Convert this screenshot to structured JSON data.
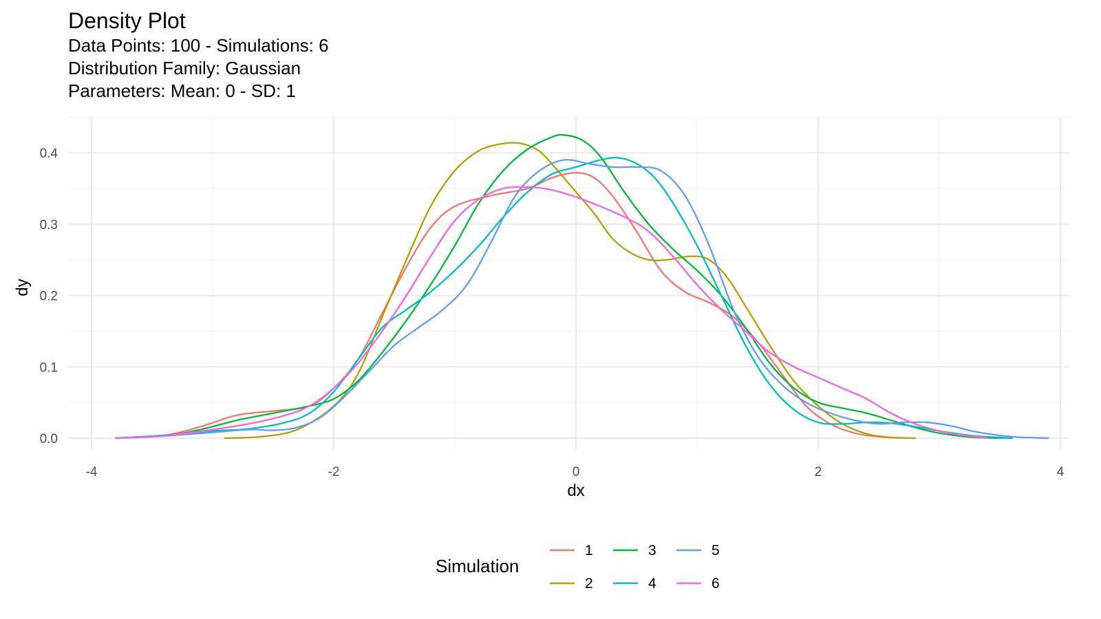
{
  "chart_data": {
    "type": "line",
    "title": "Density Plot",
    "subtitle": [
      "Data Points: 100 - Simulations: 6",
      "Distribution Family: Gaussian",
      "Parameters: Mean: 0 - SD: 1"
    ],
    "xlabel": "dx",
    "ylabel": "dy",
    "xlim": [
      -4,
      4
    ],
    "ylim": [
      0,
      0.43
    ],
    "x_ticks": [
      -4,
      -2,
      0,
      2,
      4
    ],
    "x_tick_labels": [
      "-4",
      "-2",
      "0",
      "2",
      "4"
    ],
    "y_ticks": [
      0,
      0.1,
      0.2,
      0.3,
      0.4
    ],
    "y_tick_labels": [
      "0.0",
      "0.1",
      "0.2",
      "0.3",
      "0.4"
    ],
    "grid": true,
    "legend": {
      "title": "Simulation",
      "position": "bottom"
    },
    "series": [
      {
        "name": "1",
        "color": "#F8766D",
        "points": [
          [
            -3.8,
            0.0
          ],
          [
            -3.4,
            0.004
          ],
          [
            -3.1,
            0.016
          ],
          [
            -2.8,
            0.032
          ],
          [
            -2.5,
            0.038
          ],
          [
            -2.2,
            0.045
          ],
          [
            -2.0,
            0.07
          ],
          [
            -1.8,
            0.11
          ],
          [
            -1.6,
            0.175
          ],
          [
            -1.4,
            0.24
          ],
          [
            -1.2,
            0.295
          ],
          [
            -1.0,
            0.325
          ],
          [
            -0.7,
            0.34
          ],
          [
            -0.4,
            0.35
          ],
          [
            -0.2,
            0.365
          ],
          [
            0.0,
            0.372
          ],
          [
            0.15,
            0.365
          ],
          [
            0.3,
            0.34
          ],
          [
            0.5,
            0.29
          ],
          [
            0.7,
            0.235
          ],
          [
            0.9,
            0.205
          ],
          [
            1.1,
            0.19
          ],
          [
            1.3,
            0.17
          ],
          [
            1.5,
            0.135
          ],
          [
            1.7,
            0.09
          ],
          [
            1.9,
            0.045
          ],
          [
            2.1,
            0.02
          ],
          [
            2.3,
            0.007
          ],
          [
            2.5,
            0.002
          ],
          [
            2.7,
            0.0
          ]
        ]
      },
      {
        "name": "2",
        "color": "#B79F00",
        "points": [
          [
            -2.9,
            0.0
          ],
          [
            -2.6,
            0.002
          ],
          [
            -2.3,
            0.012
          ],
          [
            -2.0,
            0.045
          ],
          [
            -1.8,
            0.09
          ],
          [
            -1.6,
            0.17
          ],
          [
            -1.4,
            0.25
          ],
          [
            -1.2,
            0.325
          ],
          [
            -1.0,
            0.375
          ],
          [
            -0.8,
            0.403
          ],
          [
            -0.6,
            0.413
          ],
          [
            -0.45,
            0.413
          ],
          [
            -0.3,
            0.402
          ],
          [
            -0.15,
            0.375
          ],
          [
            0.0,
            0.345
          ],
          [
            0.15,
            0.315
          ],
          [
            0.3,
            0.28
          ],
          [
            0.45,
            0.26
          ],
          [
            0.6,
            0.25
          ],
          [
            0.75,
            0.25
          ],
          [
            0.95,
            0.255
          ],
          [
            1.1,
            0.25
          ],
          [
            1.25,
            0.225
          ],
          [
            1.4,
            0.185
          ],
          [
            1.6,
            0.13
          ],
          [
            1.8,
            0.08
          ],
          [
            2.0,
            0.045
          ],
          [
            2.2,
            0.02
          ],
          [
            2.4,
            0.006
          ],
          [
            2.6,
            0.001
          ],
          [
            2.8,
            0.0
          ]
        ]
      },
      {
        "name": "3",
        "color": "#00BA38",
        "points": [
          [
            -3.8,
            0.0
          ],
          [
            -3.4,
            0.003
          ],
          [
            -3.1,
            0.012
          ],
          [
            -2.8,
            0.025
          ],
          [
            -2.5,
            0.035
          ],
          [
            -2.2,
            0.045
          ],
          [
            -2.0,
            0.055
          ],
          [
            -1.8,
            0.08
          ],
          [
            -1.6,
            0.12
          ],
          [
            -1.4,
            0.165
          ],
          [
            -1.2,
            0.215
          ],
          [
            -1.0,
            0.27
          ],
          [
            -0.8,
            0.33
          ],
          [
            -0.6,
            0.375
          ],
          [
            -0.4,
            0.405
          ],
          [
            -0.2,
            0.422
          ],
          [
            -0.1,
            0.425
          ],
          [
            0.05,
            0.418
          ],
          [
            0.2,
            0.395
          ],
          [
            0.4,
            0.345
          ],
          [
            0.6,
            0.3
          ],
          [
            0.8,
            0.265
          ],
          [
            1.0,
            0.235
          ],
          [
            1.2,
            0.2
          ],
          [
            1.4,
            0.155
          ],
          [
            1.6,
            0.105
          ],
          [
            1.8,
            0.07
          ],
          [
            2.0,
            0.05
          ],
          [
            2.2,
            0.042
          ],
          [
            2.4,
            0.035
          ],
          [
            2.6,
            0.025
          ],
          [
            2.8,
            0.015
          ],
          [
            3.0,
            0.007
          ],
          [
            3.3,
            0.001
          ],
          [
            3.6,
            0.0
          ]
        ]
      },
      {
        "name": "4",
        "color": "#00BFC4",
        "points": [
          [
            -3.8,
            0.0
          ],
          [
            -3.4,
            0.004
          ],
          [
            -3.0,
            0.01
          ],
          [
            -2.7,
            0.013
          ],
          [
            -2.4,
            0.022
          ],
          [
            -2.2,
            0.035
          ],
          [
            -2.0,
            0.065
          ],
          [
            -1.8,
            0.11
          ],
          [
            -1.6,
            0.155
          ],
          [
            -1.4,
            0.18
          ],
          [
            -1.2,
            0.205
          ],
          [
            -1.0,
            0.235
          ],
          [
            -0.8,
            0.27
          ],
          [
            -0.6,
            0.31
          ],
          [
            -0.4,
            0.345
          ],
          [
            -0.2,
            0.37
          ],
          [
            0.0,
            0.38
          ],
          [
            0.2,
            0.39
          ],
          [
            0.35,
            0.393
          ],
          [
            0.5,
            0.385
          ],
          [
            0.65,
            0.365
          ],
          [
            0.8,
            0.33
          ],
          [
            1.0,
            0.27
          ],
          [
            1.2,
            0.2
          ],
          [
            1.4,
            0.13
          ],
          [
            1.6,
            0.075
          ],
          [
            1.8,
            0.04
          ],
          [
            2.0,
            0.022
          ],
          [
            2.2,
            0.02
          ],
          [
            2.4,
            0.022
          ],
          [
            2.6,
            0.021
          ],
          [
            2.8,
            0.016
          ],
          [
            3.0,
            0.01
          ],
          [
            3.3,
            0.003
          ],
          [
            3.6,
            0.0
          ]
        ]
      },
      {
        "name": "5",
        "color": "#619CFF",
        "points": [
          [
            -3.8,
            0.0
          ],
          [
            -3.4,
            0.003
          ],
          [
            -3.0,
            0.008
          ],
          [
            -2.7,
            0.012
          ],
          [
            -2.5,
            0.011
          ],
          [
            -2.3,
            0.015
          ],
          [
            -2.1,
            0.03
          ],
          [
            -1.9,
            0.06
          ],
          [
            -1.7,
            0.095
          ],
          [
            -1.5,
            0.13
          ],
          [
            -1.3,
            0.155
          ],
          [
            -1.1,
            0.18
          ],
          [
            -0.9,
            0.215
          ],
          [
            -0.7,
            0.275
          ],
          [
            -0.5,
            0.34
          ],
          [
            -0.3,
            0.375
          ],
          [
            -0.1,
            0.39
          ],
          [
            0.1,
            0.385
          ],
          [
            0.3,
            0.38
          ],
          [
            0.5,
            0.38
          ],
          [
            0.7,
            0.375
          ],
          [
            0.9,
            0.34
          ],
          [
            1.1,
            0.27
          ],
          [
            1.3,
            0.18
          ],
          [
            1.5,
            0.115
          ],
          [
            1.7,
            0.075
          ],
          [
            1.9,
            0.05
          ],
          [
            2.1,
            0.035
          ],
          [
            2.3,
            0.025
          ],
          [
            2.5,
            0.02
          ],
          [
            2.7,
            0.022
          ],
          [
            2.9,
            0.022
          ],
          [
            3.1,
            0.017
          ],
          [
            3.3,
            0.009
          ],
          [
            3.6,
            0.002
          ],
          [
            3.9,
            0.0
          ]
        ]
      },
      {
        "name": "6",
        "color": "#F564E3",
        "points": [
          [
            -3.8,
            0.0
          ],
          [
            -3.4,
            0.003
          ],
          [
            -3.0,
            0.012
          ],
          [
            -2.7,
            0.02
          ],
          [
            -2.4,
            0.032
          ],
          [
            -2.2,
            0.045
          ],
          [
            -2.0,
            0.07
          ],
          [
            -1.8,
            0.105
          ],
          [
            -1.6,
            0.15
          ],
          [
            -1.4,
            0.2
          ],
          [
            -1.2,
            0.255
          ],
          [
            -1.0,
            0.305
          ],
          [
            -0.8,
            0.335
          ],
          [
            -0.6,
            0.35
          ],
          [
            -0.4,
            0.352
          ],
          [
            -0.2,
            0.348
          ],
          [
            0.0,
            0.338
          ],
          [
            0.2,
            0.325
          ],
          [
            0.4,
            0.31
          ],
          [
            0.6,
            0.29
          ],
          [
            0.8,
            0.255
          ],
          [
            1.0,
            0.215
          ],
          [
            1.2,
            0.18
          ],
          [
            1.4,
            0.15
          ],
          [
            1.6,
            0.12
          ],
          [
            1.8,
            0.1
          ],
          [
            2.0,
            0.085
          ],
          [
            2.2,
            0.07
          ],
          [
            2.4,
            0.055
          ],
          [
            2.6,
            0.035
          ],
          [
            2.8,
            0.02
          ],
          [
            3.0,
            0.01
          ],
          [
            3.2,
            0.004
          ],
          [
            3.4,
            0.0
          ]
        ]
      }
    ]
  }
}
